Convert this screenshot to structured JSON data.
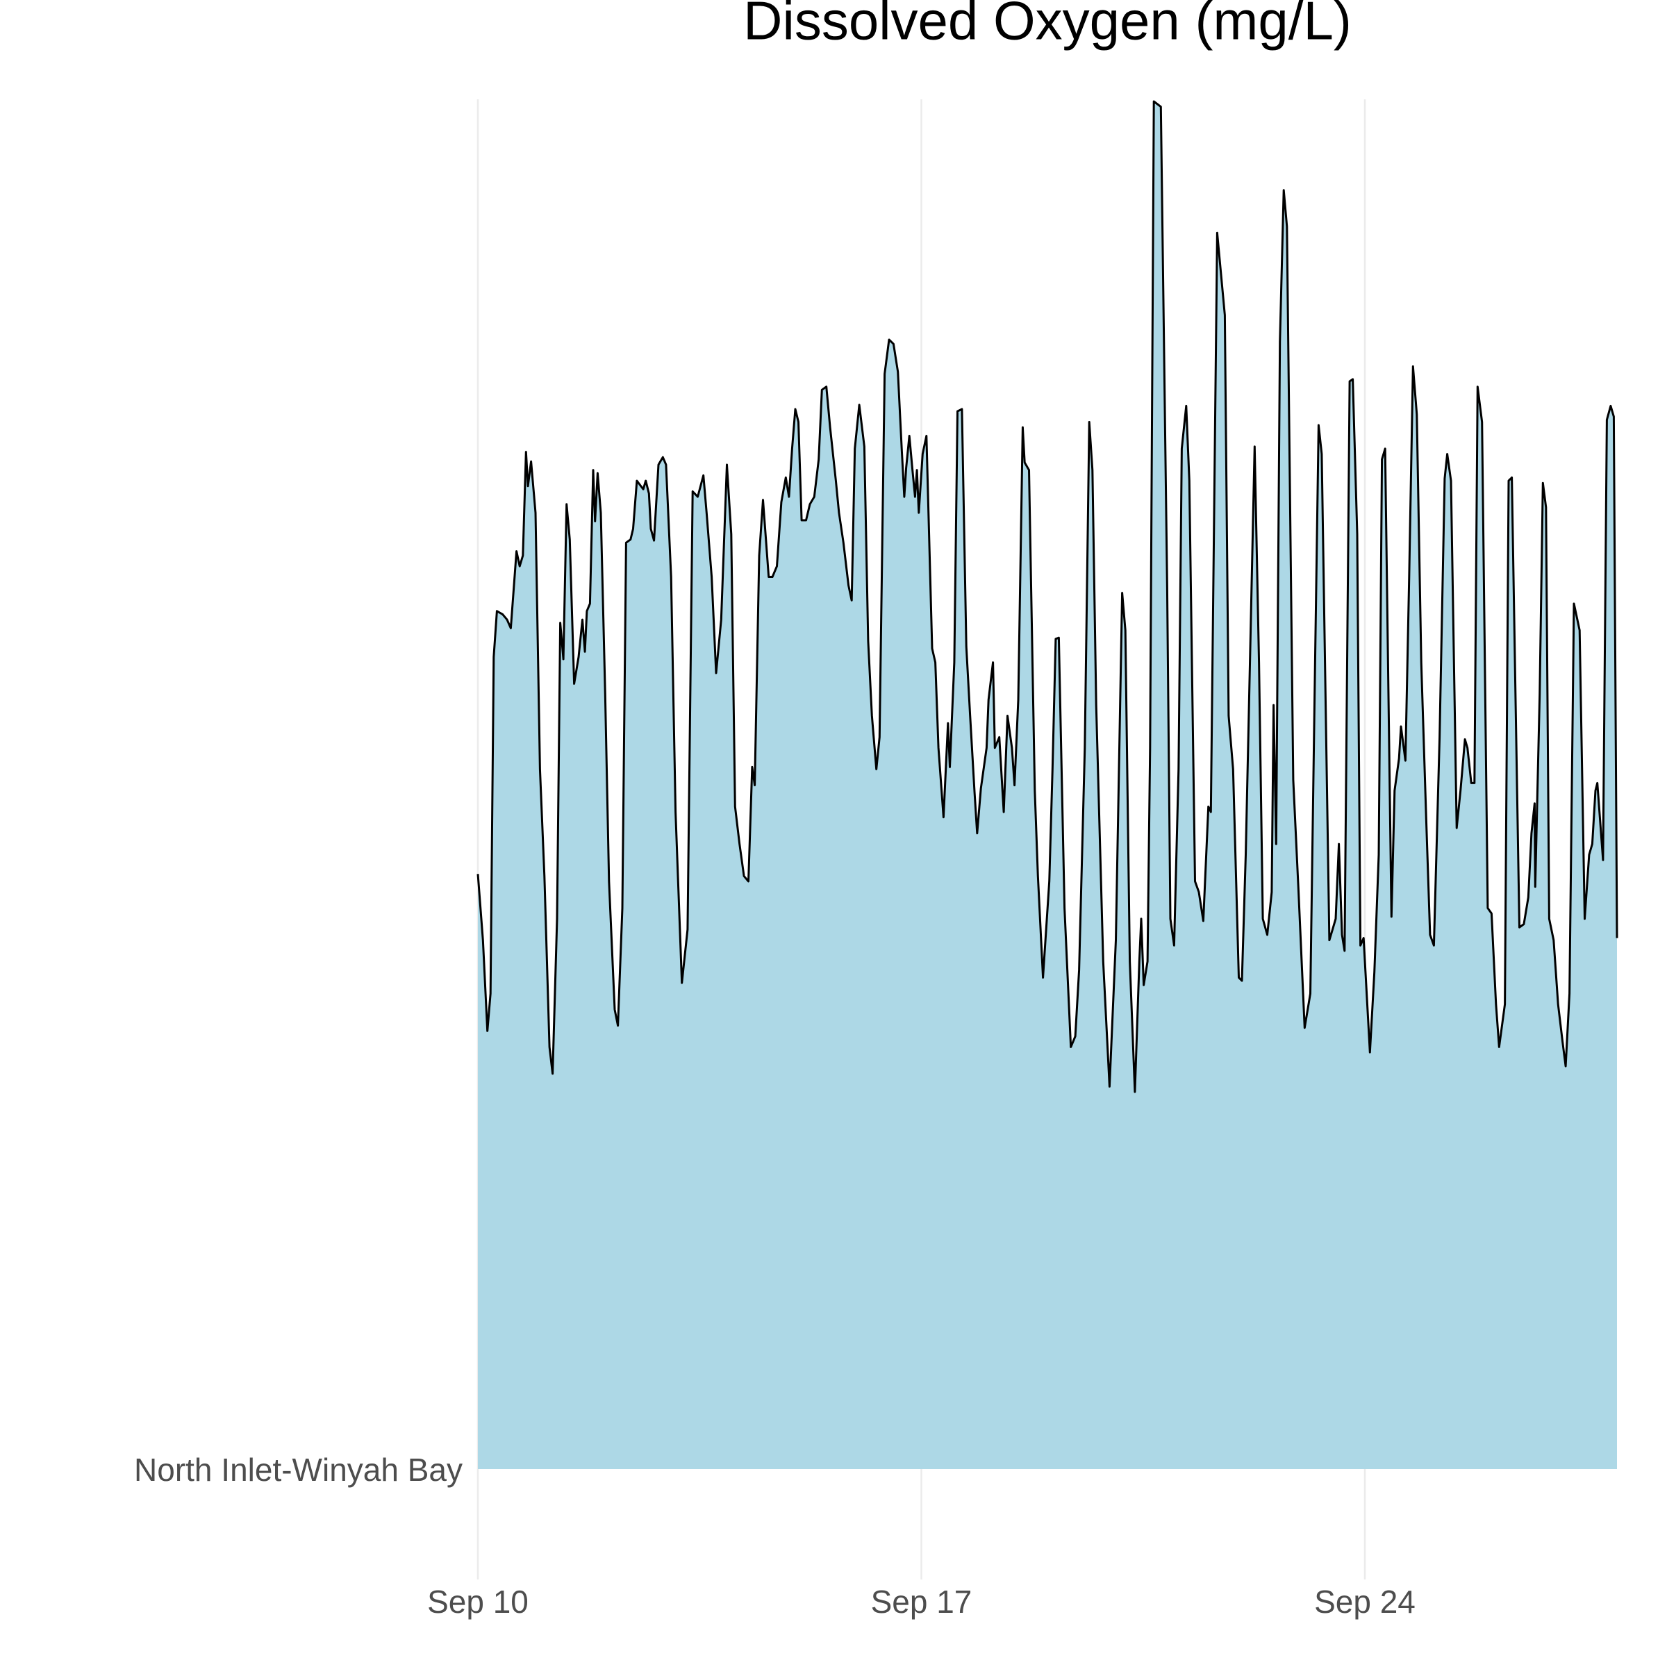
{
  "chart_data": {
    "type": "ridgeline",
    "title": "Dissolved Oxygen (mg/L)",
    "x": [
      0,
      0.08,
      0.15,
      0.2,
      0.25,
      0.3,
      0.39,
      0.46,
      0.52,
      0.61,
      0.66,
      0.71,
      0.76,
      0.79,
      0.84,
      0.91,
      0.98,
      1.05,
      1.13,
      1.18,
      1.25,
      1.3,
      1.35,
      1.4,
      1.45,
      1.52,
      1.59,
      1.65,
      1.69,
      1.72,
      1.77,
      1.82,
      1.85,
      1.89,
      1.94,
      2.01,
      2.07,
      2.16,
      2.21,
      2.28,
      2.34,
      2.41,
      2.45,
      2.51,
      2.61,
      2.65,
      2.7,
      2.73,
      2.78,
      2.85,
      2.92,
      2.97,
      3.05,
      3.12,
      3.22,
      3.31,
      3.39,
      3.47,
      3.56,
      3.61,
      3.69,
      3.76,
      3.84,
      3.93,
      4.0,
      4.06,
      4.13,
      4.2,
      4.27,
      4.33,
      4.37,
      4.44,
      4.5,
      4.59,
      4.65,
      4.72,
      4.79,
      4.86,
      4.91,
      4.96,
      5.01,
      5.06,
      5.11,
      5.18,
      5.24,
      5.31,
      5.38,
      5.43,
      5.5,
      5.56,
      5.65,
      5.7,
      5.77,
      5.85,
      5.9,
      5.95,
      6.02,
      6.1,
      6.16,
      6.22,
      6.29,
      6.34,
      6.42,
      6.49,
      6.56,
      6.63,
      6.69,
      6.73,
      6.76,
      6.81,
      6.86,
      6.9,
      6.93,
      6.96,
      7.02,
      7.08,
      7.17,
      7.22,
      7.27,
      7.35,
      7.42,
      7.45,
      7.52,
      7.57,
      7.64,
      7.71,
      7.77,
      7.84,
      7.88,
      7.94,
      8.03,
      8.06,
      8.13,
      8.16,
      8.23,
      8.3,
      8.36,
      8.43,
      8.47,
      8.53,
      8.6,
      8.63,
      8.7,
      8.79,
      8.84,
      8.92,
      9.02,
      9.07,
      9.12,
      9.17,
      9.26,
      9.36,
      9.43,
      9.49,
      9.58,
      9.65,
      9.7,
      9.76,
      9.87,
      9.97,
      10.07,
      10.17,
      10.22,
      10.29,
      10.37,
      10.44,
      10.47,
      10.51,
      10.57,
      10.61,
      10.67,
      10.78,
      10.88,
      10.93,
      10.99,
      11.06,
      11.11,
      11.18,
      11.23,
      11.32,
      11.38,
      11.45,
      11.53,
      11.57,
      11.67,
      11.79,
      11.85,
      11.92,
      12.01,
      12.06,
      12.12,
      12.19,
      12.26,
      12.33,
      12.39,
      12.46,
      12.53,
      12.56,
      12.6,
      12.66,
      12.72,
      12.77,
      12.87,
      12.95,
      13.05,
      13.14,
      13.2,
      13.27,
      13.32,
      13.39,
      13.44,
      13.49,
      13.54,
      13.59,
      13.64,
      13.68,
      13.76,
      13.81,
      13.88,
      13.93,
      13.98,
      14.08,
      14.15,
      14.22,
      14.27,
      14.32,
      14.42,
      14.47,
      14.54,
      14.57,
      14.64,
      14.7,
      14.76,
      14.82,
      14.89,
      14.97,
      15.03,
      15.09,
      15.18,
      15.26,
      15.3,
      15.36,
      15.45,
      15.51,
      15.58,
      15.62,
      15.68,
      15.73,
      15.78,
      15.85,
      15.94,
      16.0,
      16.07,
      16.12,
      16.21,
      16.27,
      16.32,
      16.44,
      16.51,
      16.58,
      16.63,
      16.68,
      16.69,
      16.76,
      16.81,
      16.86,
      16.91,
      16.98,
      17.05,
      17.12,
      17.17,
      17.23,
      17.3,
      17.39,
      17.47,
      17.54,
      17.59,
      17.64,
      17.67,
      17.76,
      17.82,
      17.88,
      17.93,
      17.98
    ],
    "series": [
      {
        "name": "North Inlet-Winyah Bay",
        "color": "#add8e6",
        "line_color": "#000000",
        "values": [
          5.57,
          4.95,
          4.1,
          4.45,
          7.6,
          8.03,
          8.0,
          7.95,
          7.87,
          8.59,
          8.45,
          8.55,
          9.52,
          9.2,
          9.43,
          8.95,
          6.55,
          5.55,
          3.95,
          3.7,
          5.15,
          7.92,
          7.58,
          9.03,
          8.7,
          7.35,
          7.6,
          7.95,
          7.65,
          8.03,
          8.1,
          9.35,
          8.87,
          9.32,
          8.95,
          7.25,
          5.5,
          4.3,
          4.15,
          5.25,
          8.67,
          8.7,
          8.8,
          9.25,
          9.17,
          9.25,
          9.13,
          8.8,
          8.69,
          9.4,
          9.47,
          9.4,
          8.35,
          6.15,
          4.55,
          5.05,
          9.15,
          9.1,
          9.3,
          8.95,
          8.35,
          7.45,
          7.95,
          9.4,
          8.75,
          6.2,
          5.85,
          5.55,
          5.5,
          6.57,
          6.4,
          8.55,
          9.07,
          8.35,
          8.35,
          8.45,
          9.05,
          9.28,
          9.1,
          9.55,
          9.92,
          9.8,
          8.88,
          8.88,
          9.03,
          9.1,
          9.45,
          10.1,
          10.13,
          9.75,
          9.25,
          8.95,
          8.67,
          8.27,
          8.13,
          9.55,
          9.96,
          9.57,
          7.75,
          7.05,
          6.55,
          6.85,
          10.25,
          10.57,
          10.53,
          10.27,
          9.55,
          9.1,
          9.37,
          9.67,
          9.35,
          9.1,
          9.35,
          8.95,
          9.5,
          9.67,
          7.68,
          7.55,
          6.75,
          6.1,
          6.98,
          6.57,
          7.55,
          9.9,
          9.92,
          7.7,
          7.05,
          6.33,
          5.95,
          6.37,
          6.75,
          7.2,
          7.55,
          6.75,
          6.85,
          6.15,
          7.05,
          6.75,
          6.4,
          7.2,
          9.75,
          9.42,
          9.35,
          6.35,
          5.55,
          4.6,
          5.5,
          6.55,
          7.77,
          7.78,
          5.25,
          3.95,
          4.05,
          4.67,
          6.75,
          9.8,
          9.35,
          7.15,
          4.75,
          3.58,
          4.95,
          8.2,
          7.85,
          4.75,
          3.53,
          4.75,
          5.15,
          4.53,
          4.75,
          6.75,
          12.8,
          12.75,
          8.25,
          5.15,
          4.9,
          6.55,
          9.55,
          9.95,
          9.25,
          5.5,
          5.4,
          5.13,
          6.2,
          6.15,
          11.57,
          10.8,
          7.05,
          6.55,
          4.6,
          4.57,
          5.75,
          7.65,
          9.57,
          7.55,
          5.15,
          5.0,
          5.4,
          7.15,
          5.85,
          10.55,
          11.97,
          11.63,
          6.45,
          5.45,
          4.13,
          4.45,
          6.95,
          9.77,
          9.5,
          6.85,
          4.95,
          5.05,
          5.15,
          5.85,
          5.0,
          4.85,
          10.18,
          10.2,
          8.75,
          4.9,
          4.97,
          3.9,
          4.65,
          5.75,
          9.45,
          9.55,
          5.17,
          6.35,
          6.65,
          6.95,
          6.63,
          8.35,
          10.32,
          9.87,
          7.55,
          6.05,
          5.0,
          4.9,
          6.85,
          9.27,
          9.5,
          9.25,
          6.0,
          6.35,
          6.83,
          6.75,
          6.42,
          6.42,
          10.13,
          9.8,
          5.25,
          5.2,
          4.35,
          3.95,
          4.35,
          9.25,
          9.28,
          5.07,
          5.1,
          5.35,
          5.95,
          6.23,
          5.45,
          7.25,
          9.23,
          9.0,
          5.15,
          4.95,
          4.35,
          4.0,
          3.77,
          4.45,
          8.1,
          7.85,
          5.15,
          5.75,
          5.85,
          6.35,
          6.42,
          5.7,
          9.82,
          9.95,
          9.85,
          4.97
        ]
      }
    ],
    "xlim": [
      0,
      17.98
    ],
    "ylim": [
      0,
      12.8
    ],
    "xticks": [
      {
        "value": 0,
        "label": "Sep 10"
      },
      {
        "value": 7,
        "label": "Sep 17"
      },
      {
        "value": 14,
        "label": "Sep 24"
      }
    ],
    "grid": true
  }
}
